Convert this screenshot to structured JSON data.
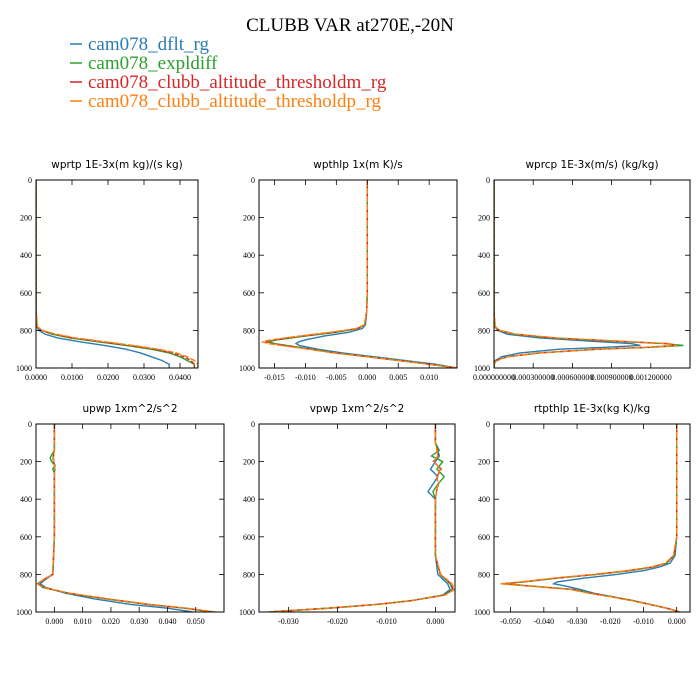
{
  "title": "CLUBB VAR at270E,-20N",
  "legend": [
    {
      "label": "cam078_dflt_rg",
      "color": "#2b7bb2"
    },
    {
      "label": "cam078_expldiff",
      "color": "#2ca02c"
    },
    {
      "label": "cam078_clubb_altitude_thresholdm_rg",
      "color": "#d62728"
    },
    {
      "label": "cam078_clubb_altitude_thresholdp_rg",
      "color": "#ff7f0e"
    }
  ],
  "chart_data": [
    {
      "type": "line",
      "title": "wprtp   1E-3x(m kg)/(s kg)",
      "xlim": [
        0,
        0.045
      ],
      "ylim": [
        0,
        1000
      ],
      "y_reversed": true,
      "xticks": [
        0,
        0.01,
        0.02,
        0.03,
        0.04
      ],
      "xtick_labels": [
        "0.0000",
        "0.0100",
        "0.0200",
        "0.0300",
        "0.0400"
      ],
      "yticks": [
        0,
        200,
        400,
        600,
        800,
        1000
      ],
      "ytick_labels": [
        "0",
        "200",
        "400",
        "600",
        "800",
        "1000"
      ],
      "y": [
        0,
        200,
        400,
        600,
        700,
        780,
        800,
        820,
        840,
        860,
        880,
        900,
        920,
        940,
        960,
        980,
        1000
      ],
      "series": [
        {
          "name": "cam078_dflt_rg",
          "x": [
            0,
            0,
            0,
            0,
            0,
            0.0002,
            0.0008,
            0.0025,
            0.006,
            0.012,
            0.019,
            0.025,
            0.029,
            0.032,
            0.035,
            0.037,
            0.037
          ]
        },
        {
          "name": "cam078_expldiff",
          "x": [
            0,
            0,
            0,
            0,
            0,
            0.0003,
            0.0015,
            0.0045,
            0.0095,
            0.017,
            0.025,
            0.032,
            0.037,
            0.04,
            0.042,
            0.044,
            0.044
          ]
        },
        {
          "name": "cam078_clubb_altitude_thresholdm_rg",
          "x": [
            0,
            0,
            0,
            0,
            0,
            0.0003,
            0.0015,
            0.005,
            0.01,
            0.018,
            0.026,
            0.033,
            0.038,
            0.041,
            0.043,
            0.044,
            0.044
          ]
        },
        {
          "name": "cam078_clubb_altitude_thresholdp_rg",
          "x": [
            0,
            0,
            0,
            0,
            0,
            0.0004,
            0.0017,
            0.0055,
            0.011,
            0.019,
            0.027,
            0.034,
            0.039,
            0.042,
            0.044,
            0.045,
            0.045
          ]
        }
      ]
    },
    {
      "type": "line",
      "title": "wpthlp   1x(m K)/s",
      "xlim": [
        -0.0175,
        0.0145
      ],
      "ylim": [
        0,
        1000
      ],
      "y_reversed": true,
      "xticks": [
        -0.015,
        -0.01,
        -0.005,
        0,
        0.005,
        0.01
      ],
      "xtick_labels": [
        "-0.015",
        "-0.010",
        "-0.005",
        "0.000",
        "0.005",
        "0.010"
      ],
      "yticks": [
        0,
        200,
        400,
        600,
        800,
        1000
      ],
      "ytick_labels": [
        "0",
        "200",
        "400",
        "600",
        "800",
        "1000"
      ],
      "y": [
        0,
        200,
        400,
        600,
        700,
        770,
        790,
        810,
        830,
        850,
        860,
        870,
        880,
        900,
        920,
        940,
        960,
        980,
        1000
      ],
      "series": [
        {
          "name": "cam078_dflt_rg",
          "x": [
            0,
            0,
            0,
            0,
            -0.0001,
            -0.0003,
            -0.0008,
            -0.003,
            -0.007,
            -0.01,
            -0.011,
            -0.0115,
            -0.011,
            -0.008,
            -0.004,
            0.001,
            0.006,
            0.011,
            0.0145
          ]
        },
        {
          "name": "cam078_expldiff",
          "x": [
            0,
            0,
            0,
            0,
            -0.0001,
            -0.0004,
            -0.0015,
            -0.005,
            -0.01,
            -0.0145,
            -0.016,
            -0.015,
            -0.013,
            -0.009,
            -0.005,
            0.0,
            0.005,
            0.01,
            0.0145
          ]
        },
        {
          "name": "cam078_clubb_altitude_thresholdm_rg",
          "x": [
            0,
            0,
            0,
            0,
            -0.0001,
            -0.0004,
            -0.0016,
            -0.0055,
            -0.0105,
            -0.015,
            -0.0165,
            -0.0155,
            -0.0135,
            -0.0093,
            -0.0052,
            0.0,
            0.005,
            0.01,
            0.0145
          ]
        },
        {
          "name": "cam078_clubb_altitude_thresholdp_rg",
          "x": [
            0,
            0,
            0,
            0,
            -0.0001,
            -0.0005,
            -0.0018,
            -0.006,
            -0.011,
            -0.0155,
            -0.017,
            -0.016,
            -0.014,
            -0.0095,
            -0.0054,
            0.0,
            0.005,
            0.01,
            0.0145
          ]
        }
      ]
    },
    {
      "type": "line",
      "title": "wprcp   1E-3x(m/s) (kg/kg)",
      "xlim": [
        0,
        0.0015
      ],
      "ylim": [
        0,
        1000
      ],
      "y_reversed": true,
      "xticks": [
        0,
        0.0003,
        0.0006,
        0.0009,
        0.0012
      ],
      "xtick_labels": [
        "0.000000000",
        "0.000300000",
        "0.000600000",
        "0.000900000",
        "0.001200000"
      ],
      "yticks": [
        0,
        200,
        400,
        600,
        800,
        1000
      ],
      "ytick_labels": [
        "0",
        "200",
        "400",
        "600",
        "800",
        "1000"
      ],
      "y": [
        0,
        200,
        400,
        600,
        700,
        780,
        800,
        820,
        840,
        860,
        870,
        880,
        890,
        900,
        920,
        940,
        960,
        980,
        1000
      ],
      "series": [
        {
          "name": "cam078_dflt_rg",
          "x": [
            0,
            0,
            0,
            0,
            0,
            5e-06,
            3e-05,
            0.0001,
            0.00035,
            0.0008,
            0.00105,
            0.00112,
            0.00085,
            0.0005,
            0.0002,
            6e-05,
            1e-05,
            0,
            0
          ]
        },
        {
          "name": "cam078_expldiff",
          "x": [
            0,
            0,
            0,
            0,
            0,
            8e-06,
            4e-05,
            0.00015,
            0.00045,
            0.001,
            0.0013,
            0.00145,
            0.0012,
            0.0008,
            0.00035,
            0.0001,
            2e-05,
            0,
            0
          ]
        },
        {
          "name": "cam078_clubb_altitude_thresholdm_rg",
          "x": [
            0,
            0,
            0,
            0,
            0,
            8e-06,
            4e-05,
            0.00016,
            0.00046,
            0.00102,
            0.00132,
            0.00138,
            0.00115,
            0.00078,
            0.00034,
            0.0001,
            2e-05,
            0,
            0
          ]
        },
        {
          "name": "cam078_clubb_altitude_thresholdp_rg",
          "x": [
            0,
            0,
            0,
            0,
            0,
            9e-06,
            4.5e-05,
            0.00017,
            0.00048,
            0.00104,
            0.00134,
            0.0014,
            0.00117,
            0.0008,
            0.00035,
            0.0001,
            2e-05,
            0,
            0
          ]
        }
      ]
    },
    {
      "type": "line",
      "title": "upwp   1xm^2/s^2",
      "xlim": [
        -0.0065,
        0.06
      ],
      "ylim": [
        0,
        1000
      ],
      "y_reversed": true,
      "xticks": [
        0,
        0.01,
        0.02,
        0.03,
        0.04,
        0.05
      ],
      "xtick_labels": [
        "0.000",
        "0.010",
        "0.020",
        "0.030",
        "0.040",
        "0.050"
      ],
      "yticks": [
        0,
        200,
        400,
        600,
        800,
        1000
      ],
      "ytick_labels": [
        "0",
        "200",
        "400",
        "600",
        "800",
        "1000"
      ],
      "y": [
        0,
        60,
        140,
        160,
        180,
        200,
        220,
        240,
        260,
        300,
        400,
        600,
        800,
        830,
        850,
        870,
        900,
        930,
        960,
        980,
        1000
      ],
      "series": [
        {
          "name": "cam078_dflt_rg",
          "x": [
            0,
            0,
            0,
            -0.0003,
            -0.0005,
            -0.0003,
            0,
            0.0002,
            0,
            0,
            0,
            0,
            -0.0005,
            -0.0035,
            -0.005,
            -0.003,
            0.004,
            0.014,
            0.027,
            0.04,
            0.049
          ]
        },
        {
          "name": "cam078_expldiff",
          "x": [
            0,
            0,
            0,
            -0.0008,
            -0.0015,
            -0.001,
            0.0003,
            -0.0006,
            0,
            0,
            0,
            0,
            -0.0006,
            -0.004,
            -0.006,
            -0.004,
            0.005,
            0.018,
            0.033,
            0.046,
            0.056
          ]
        },
        {
          "name": "cam078_clubb_altitude_thresholdm_rg",
          "x": [
            0,
            0,
            0,
            -0.0002,
            -0.0004,
            -0.0002,
            0,
            0.0001,
            0,
            0,
            0,
            0,
            -0.0006,
            -0.004,
            -0.0058,
            -0.0038,
            0.0052,
            0.0185,
            0.0335,
            0.0465,
            0.0565
          ]
        },
        {
          "name": "cam078_clubb_altitude_thresholdp_rg",
          "x": [
            0,
            0,
            0,
            -0.0002,
            -0.0003,
            -0.0002,
            0,
            0.0001,
            0,
            0,
            0,
            0,
            -0.0006,
            -0.0042,
            -0.006,
            -0.004,
            0.0055,
            0.019,
            0.034,
            0.047,
            0.057
          ]
        }
      ]
    },
    {
      "type": "line",
      "title": "vpwp   1xm^2/s^2",
      "xlim": [
        -0.036,
        0.004
      ],
      "ylim": [
        0,
        1000
      ],
      "y_reversed": true,
      "xticks": [
        -0.03,
        -0.02,
        -0.01,
        0
      ],
      "xtick_labels": [
        "-0.030",
        "-0.020",
        "-0.010",
        "0.000"
      ],
      "yticks": [
        0,
        200,
        400,
        600,
        800,
        1000
      ],
      "ytick_labels": [
        "0",
        "200",
        "400",
        "600",
        "800",
        "1000"
      ],
      "y": [
        0,
        100,
        140,
        170,
        200,
        240,
        280,
        320,
        360,
        400,
        500,
        600,
        700,
        800,
        850,
        880,
        910,
        940,
        960,
        980,
        1000
      ],
      "series": [
        {
          "name": "cam078_dflt_rg",
          "x": [
            0,
            0,
            0.0005,
            0.0008,
            0.0,
            -0.001,
            0.0005,
            -0.0005,
            -0.0015,
            0,
            0,
            0,
            0,
            0.0005,
            0.0025,
            0.003,
            0.0015,
            -0.005,
            -0.012,
            -0.022,
            -0.034
          ]
        },
        {
          "name": "cam078_expldiff",
          "x": [
            0,
            0,
            0.0008,
            -0.0008,
            0.0015,
            0.0003,
            0.0018,
            0.0005,
            -0.0005,
            0,
            0,
            0,
            0,
            0.001,
            0.003,
            0.0035,
            0.0018,
            -0.005,
            -0.012,
            -0.022,
            -0.034
          ]
        },
        {
          "name": "cam078_clubb_altitude_thresholdm_rg",
          "x": [
            0,
            0,
            0.0004,
            0.0006,
            -0.0004,
            0.0012,
            0.0003,
            0.0006,
            0.0002,
            0,
            0,
            0,
            0,
            0.001,
            0.0032,
            0.0037,
            0.0019,
            -0.005,
            -0.012,
            -0.022,
            -0.034
          ]
        },
        {
          "name": "cam078_clubb_altitude_thresholdp_rg",
          "x": [
            0,
            0,
            0.0003,
            0.0005,
            -0.0003,
            0.001,
            0.0003,
            0.0005,
            0.0002,
            0,
            0,
            0,
            0,
            0.0011,
            0.0034,
            0.0039,
            0.002,
            -0.005,
            -0.012,
            -0.022,
            -0.034
          ]
        }
      ]
    },
    {
      "type": "line",
      "title": "rtpthlp   1E-3x(kg K)/kg",
      "xlim": [
        -0.055,
        0.004
      ],
      "ylim": [
        0,
        1000
      ],
      "y_reversed": true,
      "xticks": [
        -0.05,
        -0.04,
        -0.03,
        -0.02,
        -0.01,
        0
      ],
      "xtick_labels": [
        "-0.050",
        "-0.040",
        "-0.030",
        "-0.020",
        "-0.010",
        "0.000"
      ],
      "yticks": [
        0,
        200,
        400,
        600,
        800,
        1000
      ],
      "ytick_labels": [
        "0",
        "200",
        "400",
        "600",
        "800",
        "1000"
      ],
      "y": [
        0,
        200,
        400,
        600,
        700,
        740,
        760,
        780,
        800,
        820,
        840,
        850,
        860,
        880,
        900,
        920,
        940,
        960,
        980,
        1000
      ],
      "series": [
        {
          "name": "cam078_dflt_rg",
          "x": [
            0,
            0,
            0,
            0,
            -0.0005,
            -0.002,
            -0.005,
            -0.01,
            -0.018,
            -0.028,
            -0.036,
            -0.037,
            -0.034,
            -0.029,
            -0.025,
            -0.019,
            -0.013,
            -0.008,
            -0.003,
            0.001
          ]
        },
        {
          "name": "cam078_expldiff",
          "x": [
            0,
            0,
            0,
            0,
            -0.0008,
            -0.003,
            -0.007,
            -0.014,
            -0.024,
            -0.036,
            -0.046,
            -0.052,
            -0.045,
            -0.031,
            -0.026,
            -0.019,
            -0.013,
            -0.008,
            -0.003,
            0.001
          ]
        },
        {
          "name": "cam078_clubb_altitude_thresholdm_rg",
          "x": [
            0,
            0,
            0,
            0,
            -0.0009,
            -0.0032,
            -0.0072,
            -0.0145,
            -0.0245,
            -0.0365,
            -0.0465,
            -0.0525,
            -0.0455,
            -0.0315,
            -0.0262,
            -0.0192,
            -0.0132,
            -0.0081,
            -0.003,
            0.001
          ]
        },
        {
          "name": "cam078_clubb_altitude_thresholdp_rg",
          "x": [
            0,
            0,
            0,
            0,
            -0.001,
            -0.0034,
            -0.0075,
            -0.015,
            -0.025,
            -0.037,
            -0.047,
            -0.053,
            -0.046,
            -0.032,
            -0.0265,
            -0.0195,
            -0.0134,
            -0.0082,
            -0.003,
            0.001
          ]
        }
      ]
    }
  ]
}
